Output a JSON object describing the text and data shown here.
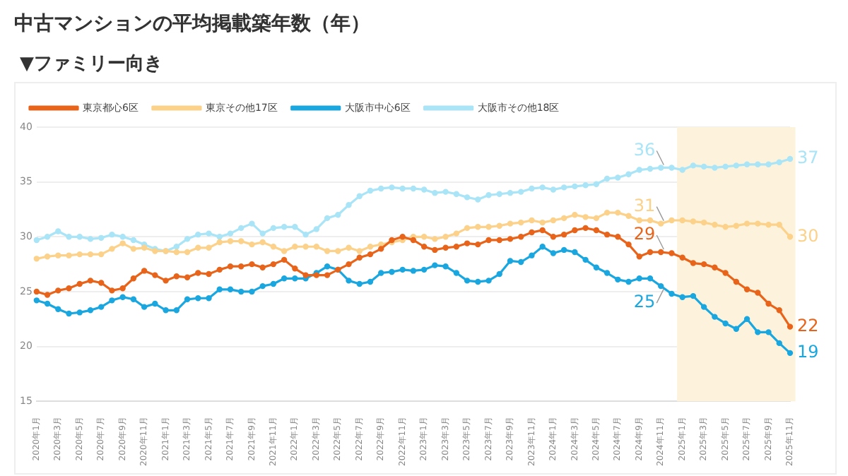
{
  "chart_data": {
    "type": "line",
    "title": "中古マンションの平均掲載築年数（年）",
    "subtitle": "▼ファミリー向き",
    "categories": [
      "2020年1月",
      null,
      "2020年3月",
      null,
      "2020年5月",
      null,
      "2020年7月",
      null,
      "2020年9月",
      null,
      "2020年11月",
      null,
      "2021年1月",
      null,
      "2021年3月",
      null,
      "2021年5月",
      null,
      "2021年7月",
      null,
      "2021年9月",
      null,
      "2021年11月",
      null,
      "2022年1月",
      null,
      "2022年3月",
      null,
      "2022年5月",
      null,
      "2022年7月",
      null,
      "2022年9月",
      null,
      "2022年11月",
      null,
      "2023年1月",
      null,
      "2023年3月",
      null,
      "2023年5月",
      null,
      "2023年7月",
      null,
      "2023年9月",
      null,
      "2023年11月",
      null,
      "2024年1月",
      null,
      "2024年3月",
      null,
      "2024年5月",
      null,
      "2024年7月",
      null,
      "2024年9月",
      null,
      "2024年11月",
      null,
      "2025年1月",
      null,
      "2025年3月",
      null,
      "2025年5月",
      null,
      "2025年7月",
      null,
      "2025年9月",
      null,
      "2025年11月"
    ],
    "series": [
      {
        "name": "東京都心6区",
        "color": "#e8641b",
        "values": [
          25.0,
          24.7,
          25.1,
          25.3,
          25.7,
          26.0,
          25.8,
          25.1,
          25.3,
          26.2,
          26.9,
          26.5,
          26.0,
          26.4,
          26.3,
          26.7,
          26.6,
          27.0,
          27.3,
          27.3,
          27.5,
          27.2,
          27.5,
          27.9,
          27.1,
          26.5,
          26.5,
          26.5,
          27.0,
          27.5,
          28.1,
          28.4,
          28.9,
          29.7,
          30.0,
          29.7,
          29.1,
          28.8,
          29.0,
          29.1,
          29.4,
          29.3,
          29.7,
          29.7,
          29.8,
          30.0,
          30.4,
          30.6,
          30.0,
          30.2,
          30.6,
          30.8,
          30.6,
          30.2,
          30.0,
          29.3,
          28.2,
          28.6,
          28.6,
          28.5,
          28.1,
          27.6,
          27.5,
          27.2,
          26.7,
          25.9,
          25.2,
          24.9,
          23.9,
          23.3,
          21.8
        ]
      },
      {
        "name": "東京その他17区",
        "color": "#fcd18a",
        "values": [
          28.0,
          28.2,
          28.3,
          28.3,
          28.4,
          28.4,
          28.4,
          28.9,
          29.4,
          28.9,
          29.0,
          28.7,
          28.7,
          28.6,
          28.6,
          29.0,
          29.0,
          29.5,
          29.6,
          29.6,
          29.3,
          29.5,
          29.1,
          28.7,
          29.1,
          29.1,
          29.1,
          28.7,
          28.7,
          29.0,
          28.7,
          29.1,
          29.3,
          29.5,
          29.7,
          30.0,
          30.0,
          29.8,
          30.0,
          30.3,
          30.8,
          30.9,
          30.9,
          31.0,
          31.2,
          31.3,
          31.5,
          31.3,
          31.5,
          31.7,
          32.0,
          31.8,
          31.7,
          32.2,
          32.2,
          31.9,
          31.5,
          31.5,
          31.2,
          31.5,
          31.5,
          31.4,
          31.3,
          31.1,
          30.9,
          31.0,
          31.2,
          31.2,
          31.1,
          31.1,
          30.0
        ]
      },
      {
        "name": "大阪市中心6区",
        "color": "#1aa7e0",
        "values": [
          24.2,
          23.9,
          23.4,
          23.0,
          23.1,
          23.3,
          23.6,
          24.2,
          24.5,
          24.3,
          23.6,
          23.9,
          23.3,
          23.3,
          24.3,
          24.4,
          24.4,
          25.2,
          25.2,
          25.0,
          25.0,
          25.5,
          25.7,
          26.2,
          26.2,
          26.2,
          26.7,
          27.3,
          27.0,
          26.0,
          25.7,
          25.9,
          26.7,
          26.8,
          27.0,
          26.9,
          27.0,
          27.4,
          27.3,
          26.7,
          26.0,
          25.9,
          26.0,
          26.6,
          27.8,
          27.7,
          28.3,
          29.1,
          28.5,
          28.8,
          28.6,
          27.9,
          27.2,
          26.7,
          26.1,
          25.9,
          26.2,
          26.2,
          25.5,
          24.8,
          24.5,
          24.6,
          23.6,
          22.7,
          22.1,
          21.6,
          22.5,
          21.3,
          21.3,
          20.3,
          19.4
        ]
      },
      {
        "name": "大阪市その他18区",
        "color": "#a9e4f7",
        "values": [
          29.7,
          30.0,
          30.5,
          30.0,
          30.0,
          29.8,
          29.9,
          30.2,
          30.0,
          29.7,
          29.3,
          28.9,
          28.7,
          29.1,
          29.8,
          30.2,
          30.3,
          30.0,
          30.3,
          30.8,
          31.2,
          30.3,
          30.8,
          30.9,
          30.9,
          30.2,
          30.7,
          31.7,
          32.0,
          32.9,
          33.7,
          34.2,
          34.4,
          34.5,
          34.4,
          34.4,
          34.3,
          34.0,
          34.1,
          33.9,
          33.6,
          33.4,
          33.8,
          33.9,
          34.0,
          34.1,
          34.4,
          34.5,
          34.3,
          34.5,
          34.6,
          34.7,
          34.8,
          35.3,
          35.4,
          35.7,
          36.1,
          36.2,
          36.3,
          36.3,
          36.1,
          36.5,
          36.4,
          36.3,
          36.4,
          36.5,
          36.6,
          36.6,
          36.6,
          36.8,
          37.1
        ]
      }
    ],
    "ylim": [
      15,
      40
    ],
    "yticks": [
      15,
      20,
      25,
      30,
      35,
      40
    ],
    "grid": "y",
    "legend": "top left",
    "marker": "circle",
    "bands": [
      {
        "axis": "x",
        "from": "2025年1月",
        "to": "2025年11月",
        "color": "#fdf3dc"
      }
    ],
    "annotations": [
      {
        "text": "36",
        "x": "2024年11月",
        "y": 36.3
      },
      {
        "text": "31",
        "x": "2024年11月",
        "y": 31.2
      },
      {
        "text": "29",
        "x": "2024年11月",
        "y": 28.6
      },
      {
        "text": "25",
        "x": "2024年11月",
        "y": 25.5
      },
      {
        "text": "37",
        "x": "2025年11月",
        "y": 37.1
      },
      {
        "text": "30",
        "x": "2025年11月",
        "y": 30.0
      },
      {
        "text": "22",
        "x": "2025年11月",
        "y": 21.8
      },
      {
        "text": "19",
        "x": "2025年11月",
        "y": 19.4
      }
    ]
  }
}
